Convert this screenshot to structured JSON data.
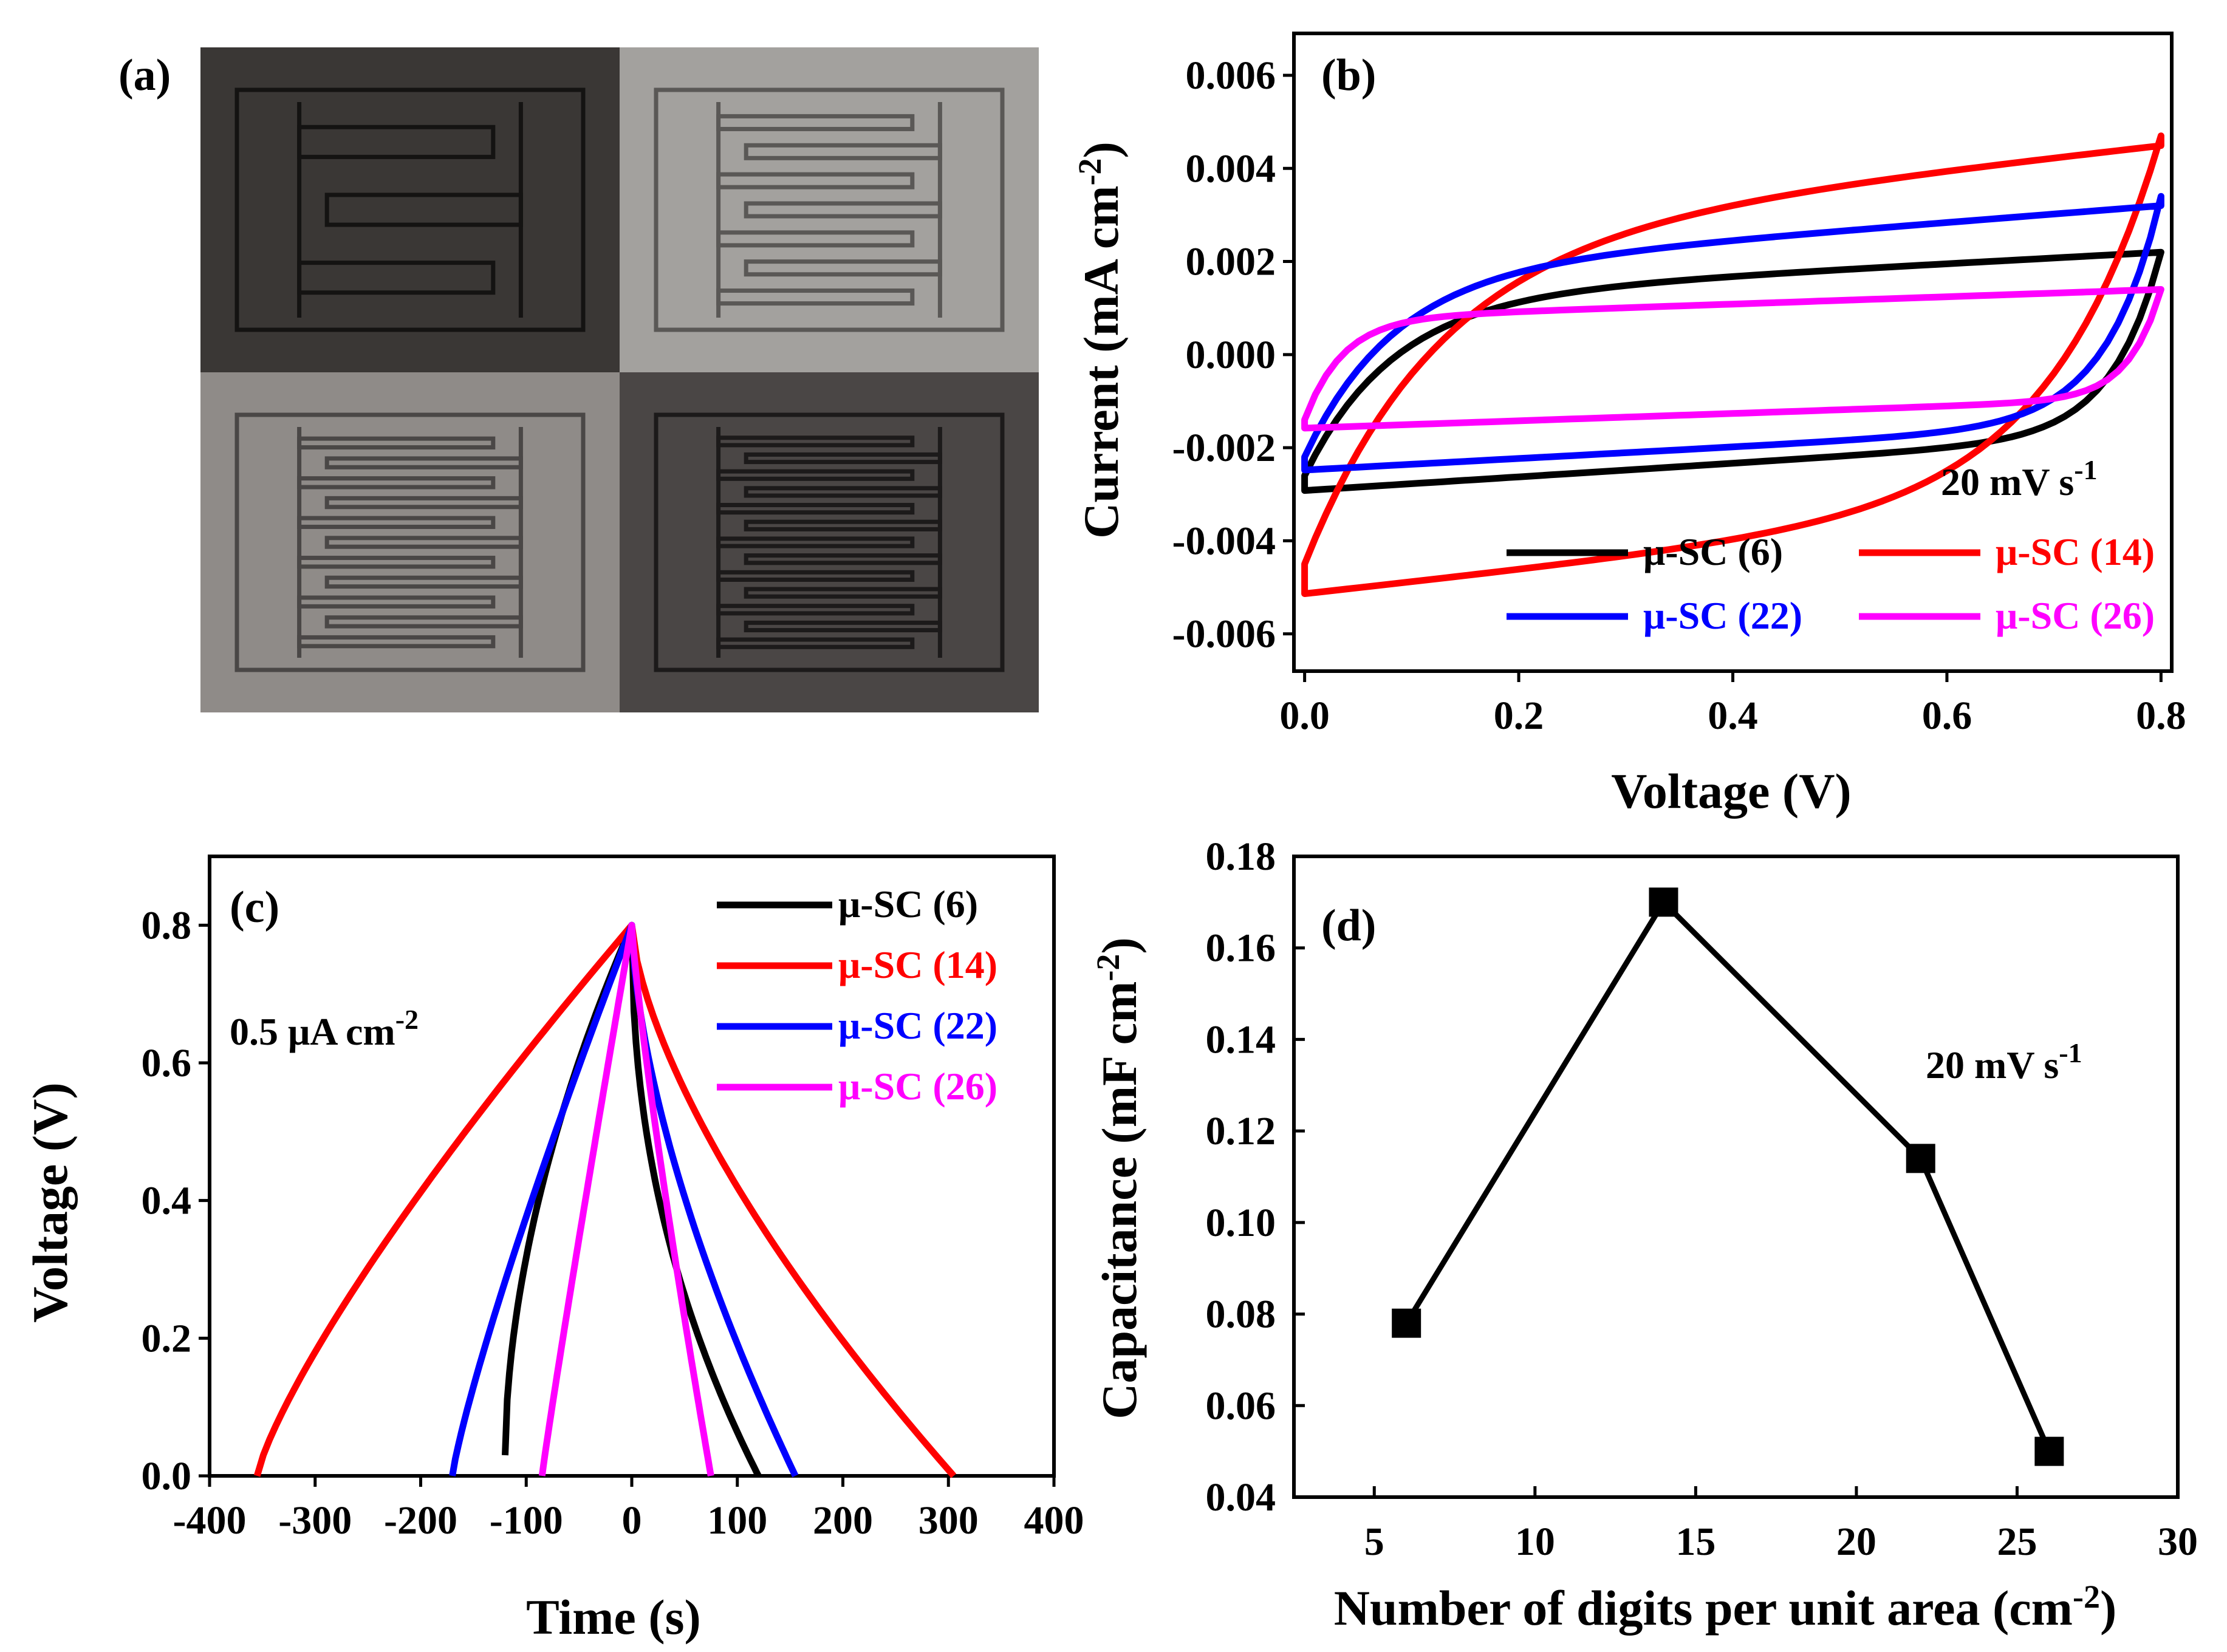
{
  "panels": {
    "a": {
      "label": "(a)",
      "photos": [
        {
          "digits": 6,
          "tone": "#3a3735",
          "line": "#141312"
        },
        {
          "digits": 14,
          "tone": "#a3a19e",
          "line": "#5a5856"
        },
        {
          "digits": 22,
          "tone": "#8f8b88",
          "line": "#4a4746"
        },
        {
          "digits": 26,
          "tone": "#4a4645",
          "line": "#1c1a1a"
        }
      ]
    },
    "b": {
      "label": "(b)",
      "annotation_value": "20 mV s",
      "annotation_exp": "-1"
    },
    "c": {
      "label": "(c)",
      "annotation_value": "0.5 μA cm",
      "annotation_exp": "-2"
    },
    "d": {
      "label": "(d)",
      "annotation_value": "20 mV s",
      "annotation_exp": "-1"
    }
  },
  "chart_data": [
    {
      "id": "b",
      "type": "line",
      "title": "",
      "xlabel": "Voltage (V)",
      "ylabel_base": "Current (mA cm",
      "ylabel_exp": "-2",
      "ylabel_tail": ")",
      "xlim": [
        -0.01,
        0.81
      ],
      "ylim": [
        -0.0068,
        0.0069
      ],
      "xticks": [
        0.0,
        0.2,
        0.4,
        0.6,
        0.8
      ],
      "xtick_labels": [
        "0.0",
        "0.2",
        "0.4",
        "0.6",
        "0.8"
      ],
      "yticks": [
        -0.006,
        -0.004,
        -0.002,
        0.0,
        0.002,
        0.004,
        0.006
      ],
      "ytick_labels": [
        "-0.006",
        "-0.004",
        "-0.002",
        "0.000",
        "0.002",
        "0.004",
        "0.006"
      ],
      "legend_position": "bottom-right",
      "series": [
        {
          "name": "μ-SC (6)",
          "color": "#000000",
          "i0": -0.0026,
          "iend": 0.0022,
          "ianodic": 0.0022,
          "icathodic": -0.0026,
          "kf": 0.08,
          "kr": 0.045,
          "bf": 0.0,
          "br": -0.0016
        },
        {
          "name": "μ-SC (14)",
          "color": "#ff0000",
          "i0": -0.0045,
          "iend": 0.0047,
          "ianodic": 0.0045,
          "icathodic": -0.0045,
          "kf": 0.12,
          "kr": 0.1,
          "bf": 0.0,
          "br": -0.0032
        },
        {
          "name": "μ-SC (22)",
          "color": "#0000ff",
          "i0": -0.0022,
          "iend": 0.0034,
          "ianodic": 0.0032,
          "icathodic": -0.0022,
          "kf": 0.08,
          "kr": 0.05,
          "bf": 0.0,
          "br": -0.0014
        },
        {
          "name": "μ-SC (26)",
          "color": "#ff00ff",
          "i0": -0.0014,
          "iend": 0.0014,
          "ianodic": 0.0014,
          "icathodic": -0.0014,
          "kf": 0.035,
          "kr": 0.03,
          "bf": 0.0,
          "br": -0.0009
        }
      ]
    },
    {
      "id": "c",
      "type": "line",
      "title": "",
      "xlabel": "Time (s)",
      "ylabel": "Voltage (V)",
      "xlim": [
        -400,
        400
      ],
      "ylim": [
        0.0,
        0.9
      ],
      "xticks": [
        -400,
        -300,
        -200,
        -100,
        0,
        100,
        200,
        300,
        400
      ],
      "xtick_labels": [
        "-400",
        "-300",
        "-200",
        "-100",
        "0",
        "100",
        "200",
        "300",
        "400"
      ],
      "yticks": [
        0.0,
        0.2,
        0.4,
        0.6,
        0.8
      ],
      "ytick_labels": [
        "0.0",
        "0.2",
        "0.4",
        "0.6",
        "0.8"
      ],
      "legend_position": "top-right",
      "series": [
        {
          "name": "μ-SC (6)",
          "color": "#000000",
          "t_start": -120,
          "v_start": 0.03,
          "t_end": 120,
          "v_end": 0.0,
          "peak_t": 0,
          "peak_v": 0.8,
          "pc": 0.55,
          "pd": 2.2
        },
        {
          "name": "μ-SC (14)",
          "color": "#ff0000",
          "t_start": -355,
          "v_start": 0.0,
          "t_end": 305,
          "v_end": 0.0,
          "peak_t": 0,
          "peak_v": 0.8,
          "pc": 0.8,
          "pd": 1.5
        },
        {
          "name": "μ-SC (22)",
          "color": "#0000ff",
          "t_start": -170,
          "v_start": 0.0,
          "t_end": 155,
          "v_end": 0.0,
          "peak_t": 0,
          "peak_v": 0.8,
          "pc": 0.85,
          "pd": 1.6
        },
        {
          "name": "μ-SC (26)",
          "color": "#ff00ff",
          "t_start": -85,
          "v_start": 0.0,
          "t_end": 75,
          "v_end": 0.0,
          "peak_t": 0,
          "peak_v": 0.8,
          "pc": 0.95,
          "pd": 1.2
        }
      ]
    },
    {
      "id": "d",
      "type": "line",
      "title": "",
      "xlabel_base": "Number of digits per unit area (cm",
      "xlabel_exp": "-2",
      "xlabel_tail": ")",
      "ylabel_base": "Capacitance (mF cm",
      "ylabel_exp": "-2",
      "ylabel_tail": ")",
      "xlim": [
        2.5,
        30
      ],
      "ylim": [
        0.04,
        0.18
      ],
      "xticks": [
        5,
        10,
        15,
        20,
        25,
        30
      ],
      "xtick_labels": [
        "5",
        "10",
        "15",
        "20",
        "25",
        "30"
      ],
      "yticks": [
        0.04,
        0.06,
        0.08,
        0.1,
        0.12,
        0.14,
        0.16,
        0.18
      ],
      "ytick_labels": [
        "0.04",
        "0.06",
        "0.08",
        "0.10",
        "0.12",
        "0.14",
        "0.16",
        "0.18"
      ],
      "series": [
        {
          "name": "Capacitance",
          "color": "#000000",
          "x": [
            6,
            14,
            22,
            26
          ],
          "y": [
            0.078,
            0.17,
            0.114,
            0.05
          ]
        }
      ]
    }
  ]
}
